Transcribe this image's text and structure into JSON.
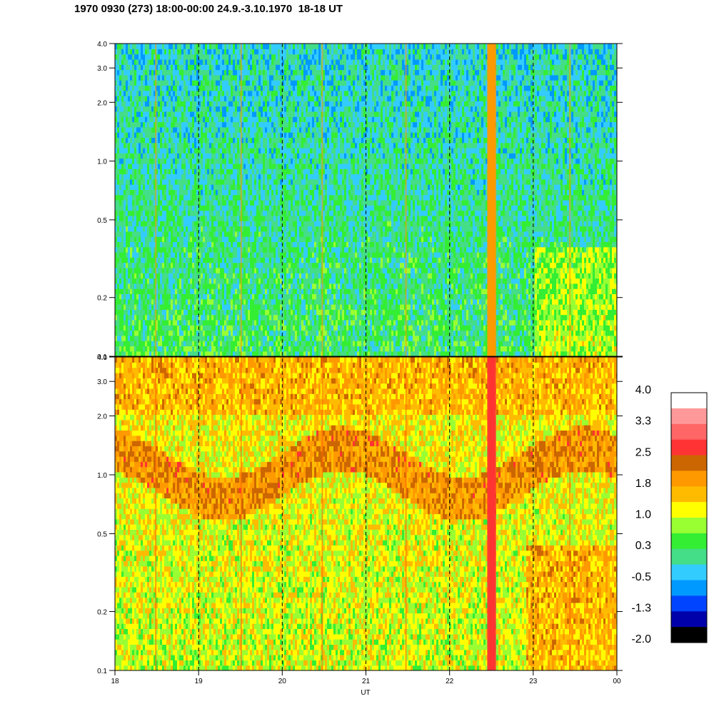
{
  "header": {
    "title": "1970 0930 (273) 18:00-00:00 24.9.-3.10.1970  18-18 UT"
  },
  "chart_data": {
    "type": "heatmap",
    "xlabel": "UT",
    "x_ticks": [
      "18",
      "19",
      "20",
      "21",
      "22",
      "23",
      "00"
    ],
    "x_range": [
      18,
      24
    ],
    "dashed_hour_lines": [
      19,
      20,
      21,
      22,
      23
    ],
    "y_scale": "log",
    "y_range": [
      0.1,
      4.0
    ],
    "y_ticks": [
      {
        "value": 0.1,
        "label": "0.1"
      },
      {
        "value": 0.2,
        "label": "0.2"
      },
      {
        "value": 0.5,
        "label": "0.5"
      },
      {
        "value": 1.0,
        "label": "1.0"
      },
      {
        "value": 2.0,
        "label": "2.0"
      },
      {
        "value": 3.0,
        "label": "3.0"
      },
      {
        "value": 4.0,
        "label": "4.0"
      }
    ],
    "panels": [
      {
        "name": "",
        "typical_level_low": 0.3,
        "typical_level_high": -0.2
      },
      {
        "name": "",
        "typical_level_low": 1.0,
        "typical_level_high": 1.3
      }
    ],
    "colorbar": {
      "range": [
        -2.0,
        4.0
      ],
      "tick_labels": [
        "4.0",
        "3.3",
        "2.5",
        "1.8",
        "1.0",
        "0.3",
        "-0.5",
        "-1.3",
        "-2.0"
      ],
      "colors_top_to_bottom": [
        "#ffffff",
        "#ff9999",
        "#ff6666",
        "#ff3333",
        "#cc6600",
        "#ff9900",
        "#ffbb00",
        "#ffff00",
        "#99ff33",
        "#33ee33",
        "#44dd88",
        "#33ccff",
        "#0099ff",
        "#0044ff",
        "#0000aa",
        "#000000"
      ]
    },
    "grid": false
  }
}
